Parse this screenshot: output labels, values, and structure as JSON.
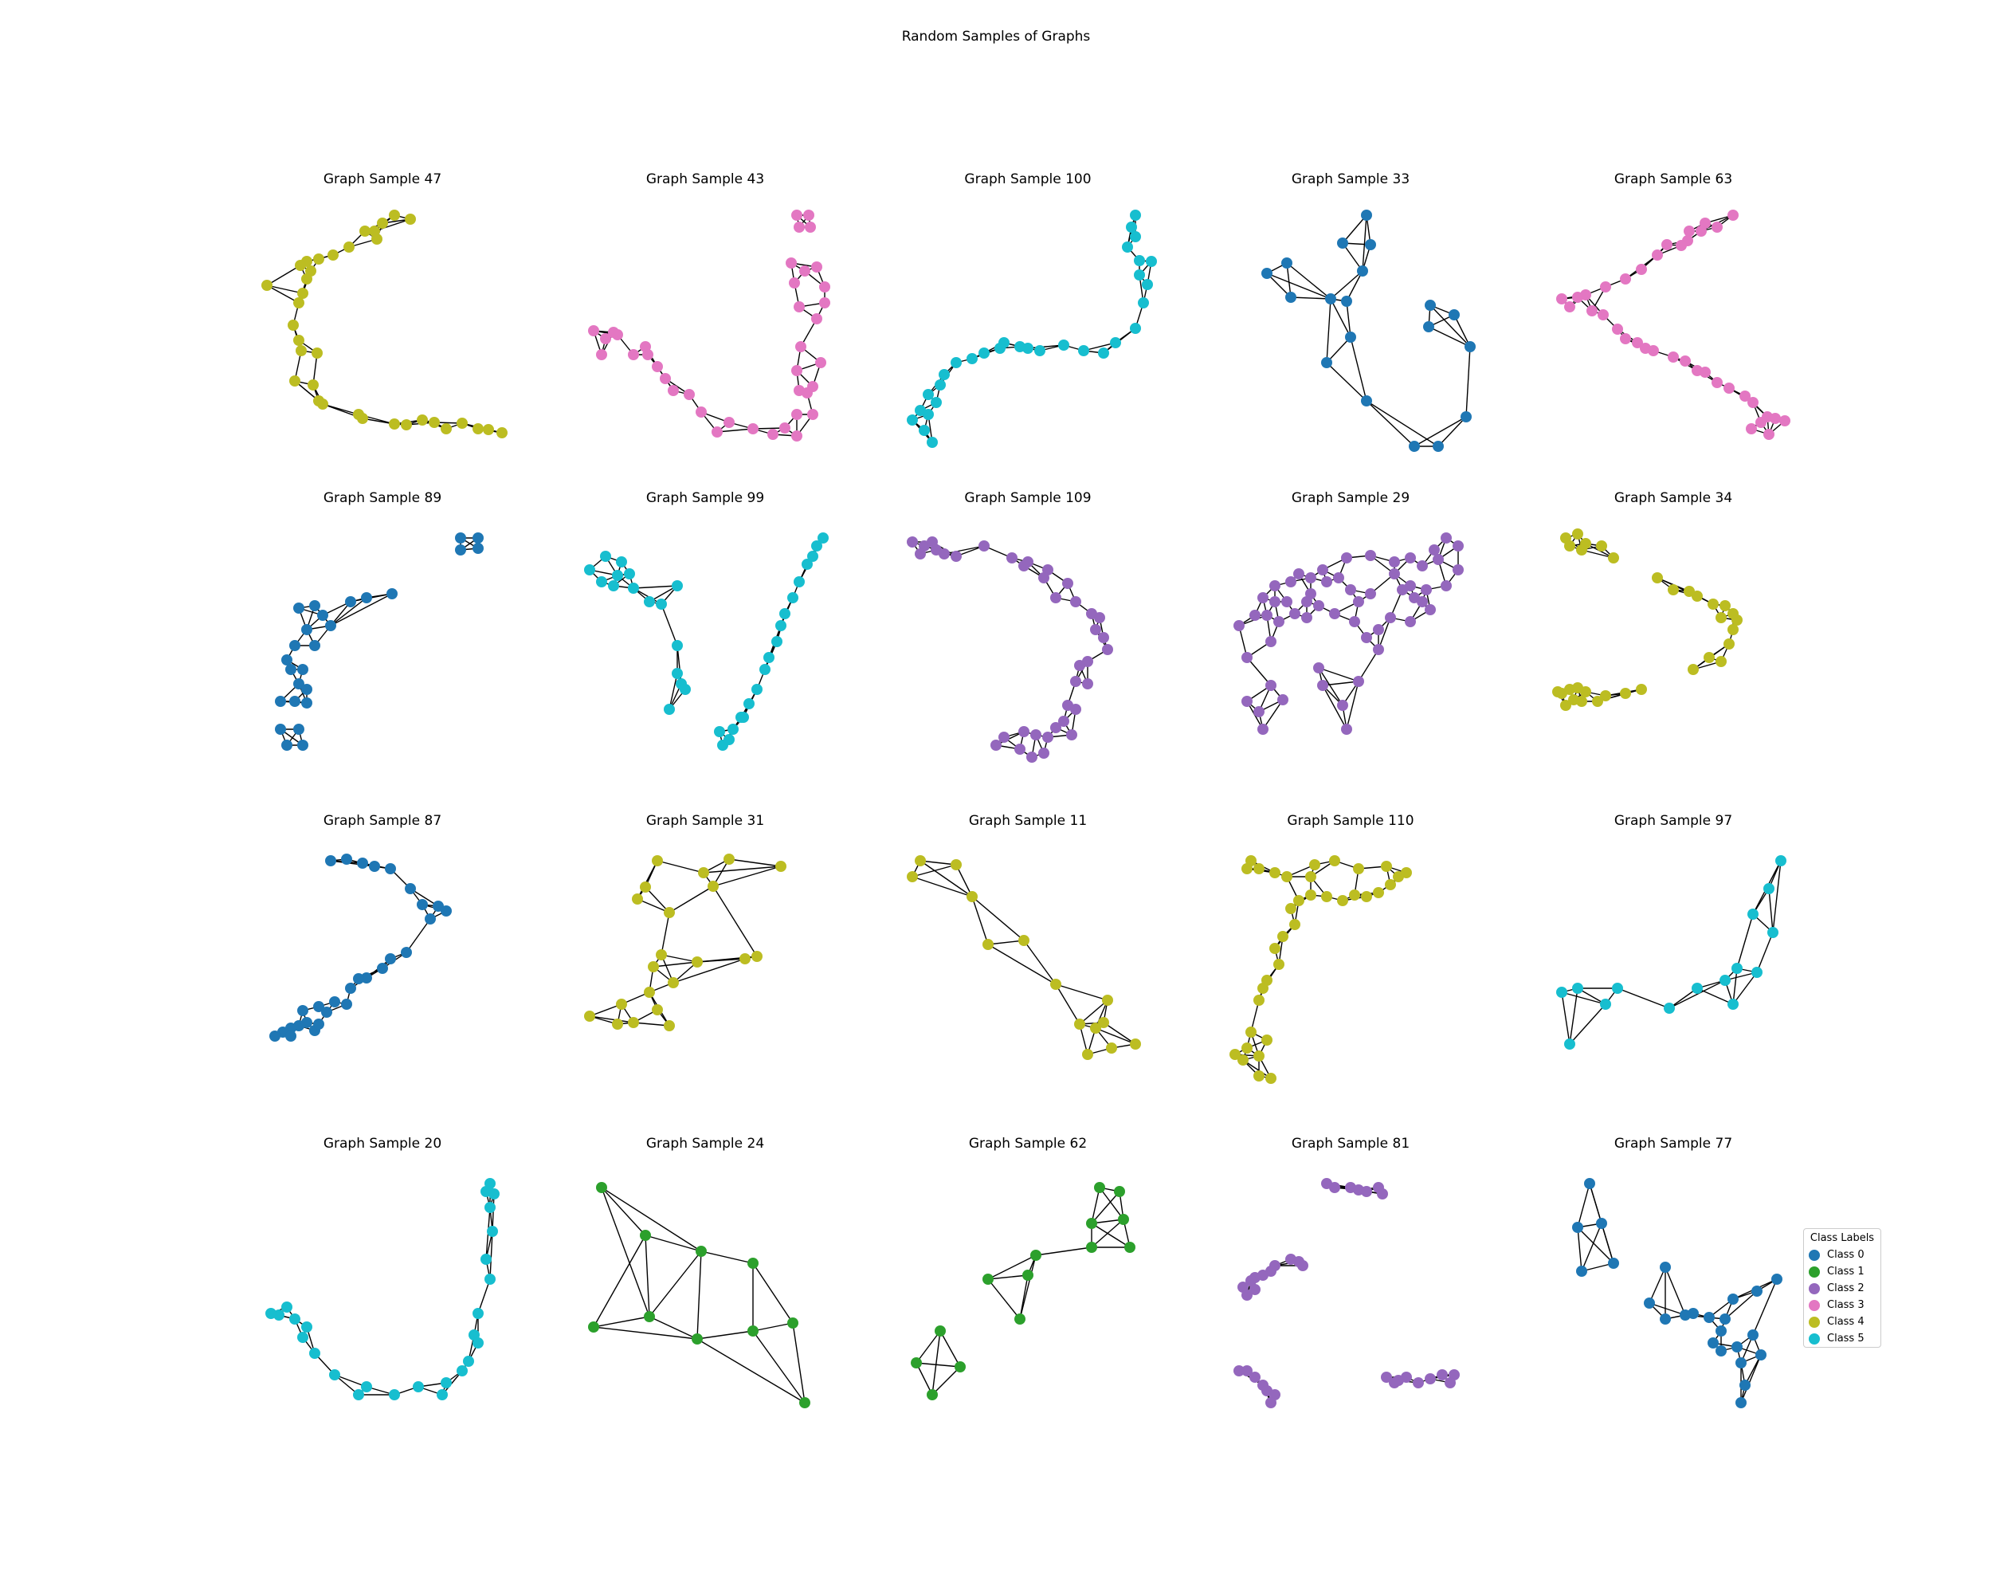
{
  "title": "Random Samples of Graphs",
  "colors": {
    "class0": "#1f77b4",
    "class1": "#2ca02c",
    "class2": "#9467bd",
    "class3": "#e377c2",
    "class4": "#bcbd22",
    "class5": "#17becf",
    "edge": "#000000"
  },
  "legend": {
    "title": "Class Labels",
    "items": [
      {
        "label": "Class 0",
        "color": "#1f77b4"
      },
      {
        "label": "Class 1",
        "color": "#2ca02c"
      },
      {
        "label": "Class 2",
        "color": "#9467bd"
      },
      {
        "label": "Class 3",
        "color": "#e377c2"
      },
      {
        "label": "Class 4",
        "color": "#bcbd22"
      },
      {
        "label": "Class 5",
        "color": "#17becf"
      }
    ]
  },
  "samples": [
    {
      "title": "Graph Sample 47",
      "class": 4
    },
    {
      "title": "Graph Sample 43",
      "class": 3
    },
    {
      "title": "Graph Sample 100",
      "class": 5
    },
    {
      "title": "Graph Sample 33",
      "class": 0
    },
    {
      "title": "Graph Sample 63",
      "class": 3
    },
    {
      "title": "Graph Sample 89",
      "class": 0
    },
    {
      "title": "Graph Sample 99",
      "class": 5
    },
    {
      "title": "Graph Sample 109",
      "class": 2
    },
    {
      "title": "Graph Sample 29",
      "class": 2
    },
    {
      "title": "Graph Sample 34",
      "class": 4
    },
    {
      "title": "Graph Sample 87",
      "class": 0
    },
    {
      "title": "Graph Sample 31",
      "class": 4
    },
    {
      "title": "Graph Sample 11",
      "class": 4
    },
    {
      "title": "Graph Sample 110",
      "class": 4
    },
    {
      "title": "Graph Sample 97",
      "class": 5
    },
    {
      "title": "Graph Sample 20",
      "class": 5
    },
    {
      "title": "Graph Sample 24",
      "class": 1
    },
    {
      "title": "Graph Sample 62",
      "class": 1
    },
    {
      "title": "Graph Sample 81",
      "class": 2
    },
    {
      "title": "Graph Sample 77",
      "class": 0
    }
  ]
}
